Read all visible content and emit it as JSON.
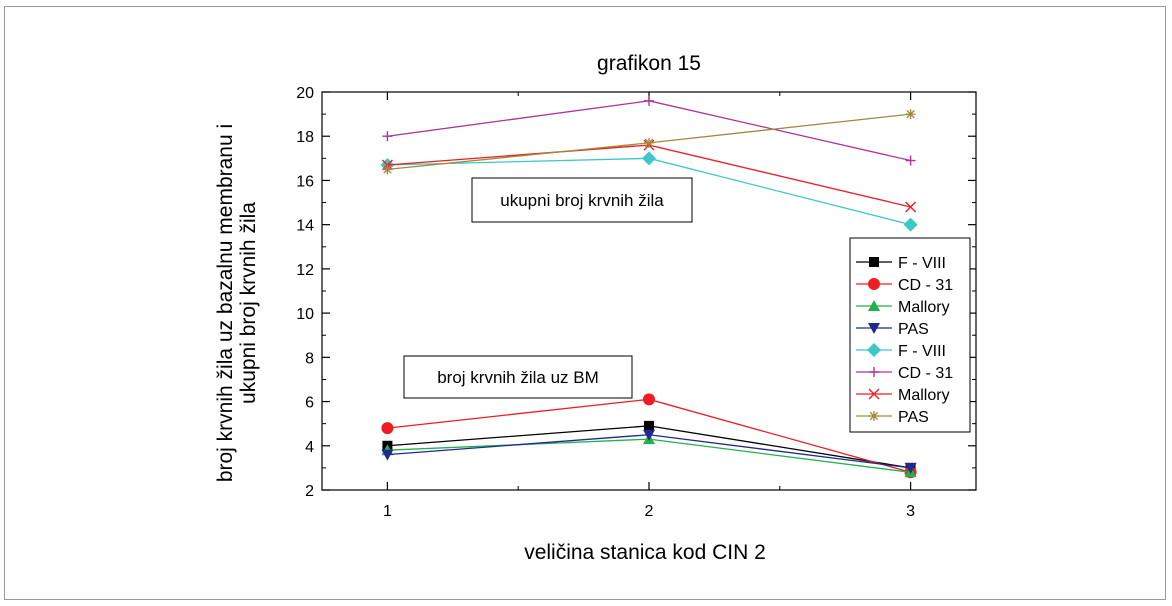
{
  "chart_data": {
    "type": "line",
    "title": "grafikon 15",
    "xlabel": "veličina stanica kod CIN 2",
    "ylabel_lines": [
      "broj krvnih žila uz bazalnu membranu i",
      "ukupni broj krvnih žila"
    ],
    "x": [
      1,
      2,
      3
    ],
    "xlim": [
      0.75,
      3.25
    ],
    "ylim": [
      2,
      20
    ],
    "yticks": [
      2,
      4,
      6,
      8,
      10,
      12,
      14,
      16,
      18,
      20
    ],
    "xticks": [
      1,
      2,
      3
    ],
    "grid": false,
    "legend_position": "right",
    "annotations": [
      "ukupni broj krvnih žila",
      "broj krvnih žila uz BM"
    ],
    "series": [
      {
        "name": "F - VIII",
        "color": "#000000",
        "marker": "square",
        "values": [
          4.0,
          4.9,
          3.0
        ]
      },
      {
        "name": "CD - 31",
        "color": "#ee1c24",
        "marker": "circle",
        "values": [
          4.8,
          6.1,
          2.8
        ]
      },
      {
        "name": "Mallory",
        "color": "#22b24c",
        "marker": "triangle-up",
        "values": [
          3.8,
          4.3,
          2.8
        ]
      },
      {
        "name": "PAS",
        "color": "#1f2a8c",
        "marker": "triangle-down",
        "values": [
          3.6,
          4.5,
          3.0
        ]
      },
      {
        "name": "F - VIII",
        "color": "#3cc8c8",
        "marker": "diamond",
        "values": [
          16.7,
          17.0,
          14.0
        ]
      },
      {
        "name": "CD - 31",
        "color": "#b0309c",
        "marker": "plus",
        "values": [
          18.0,
          19.6,
          16.9
        ]
      },
      {
        "name": "Mallory",
        "color": "#ee1c24",
        "marker": "x",
        "values": [
          16.7,
          17.6,
          14.8
        ]
      },
      {
        "name": "PAS",
        "color": "#a08a3c",
        "marker": "star",
        "values": [
          16.5,
          17.7,
          19.0
        ]
      }
    ]
  }
}
